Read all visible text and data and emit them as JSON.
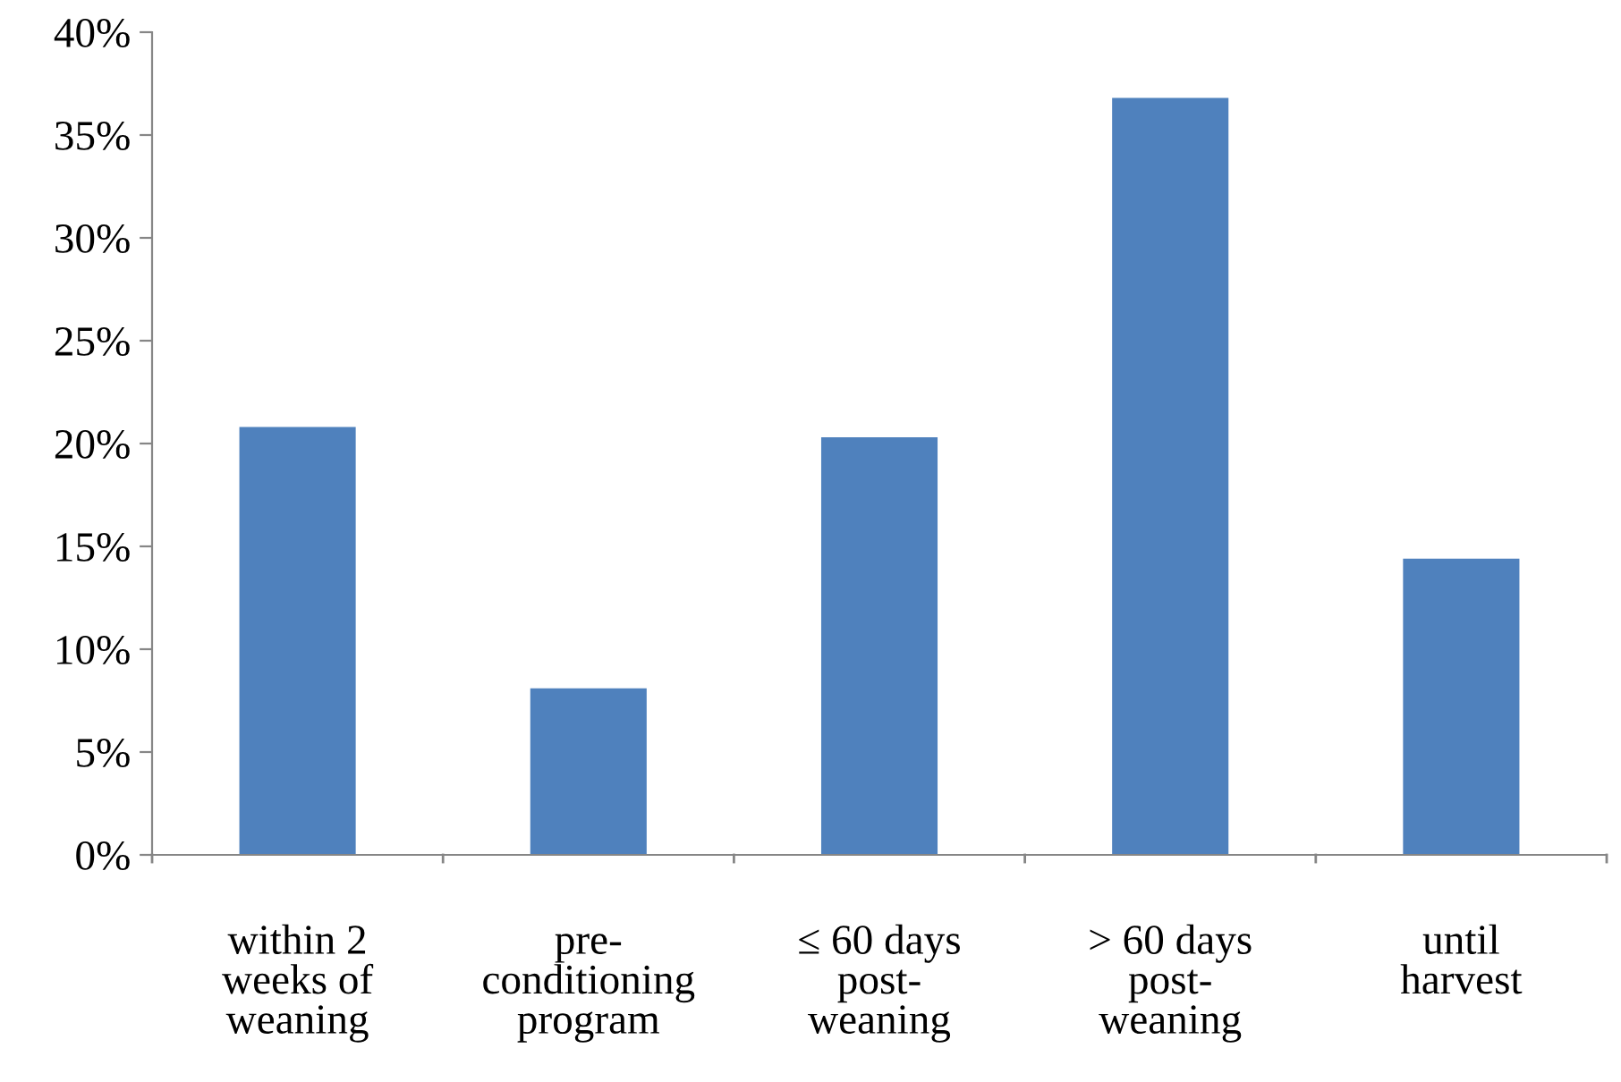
{
  "chart_data": {
    "type": "bar",
    "categories": [
      "within 2\nweeks of\nweaning",
      "pre-\nconditioning\nprogram",
      "≤ 60 days\npost-\nweaning",
      "> 60 days\npost-\nweaning",
      "until\nharvest"
    ],
    "values": [
      20.8,
      8.1,
      20.3,
      36.8,
      14.4
    ],
    "color": "#4f81bd",
    "ylim": [
      0,
      40
    ],
    "yticks": [
      {
        "value": 0,
        "label": "0%"
      },
      {
        "value": 5,
        "label": "5%"
      },
      {
        "value": 10,
        "label": "10%"
      },
      {
        "value": 15,
        "label": "15%"
      },
      {
        "value": 20,
        "label": "20%"
      },
      {
        "value": 25,
        "label": "25%"
      },
      {
        "value": 30,
        "label": "30%"
      },
      {
        "value": 35,
        "label": "35%"
      },
      {
        "value": 40,
        "label": "40%"
      }
    ],
    "grid": false
  }
}
